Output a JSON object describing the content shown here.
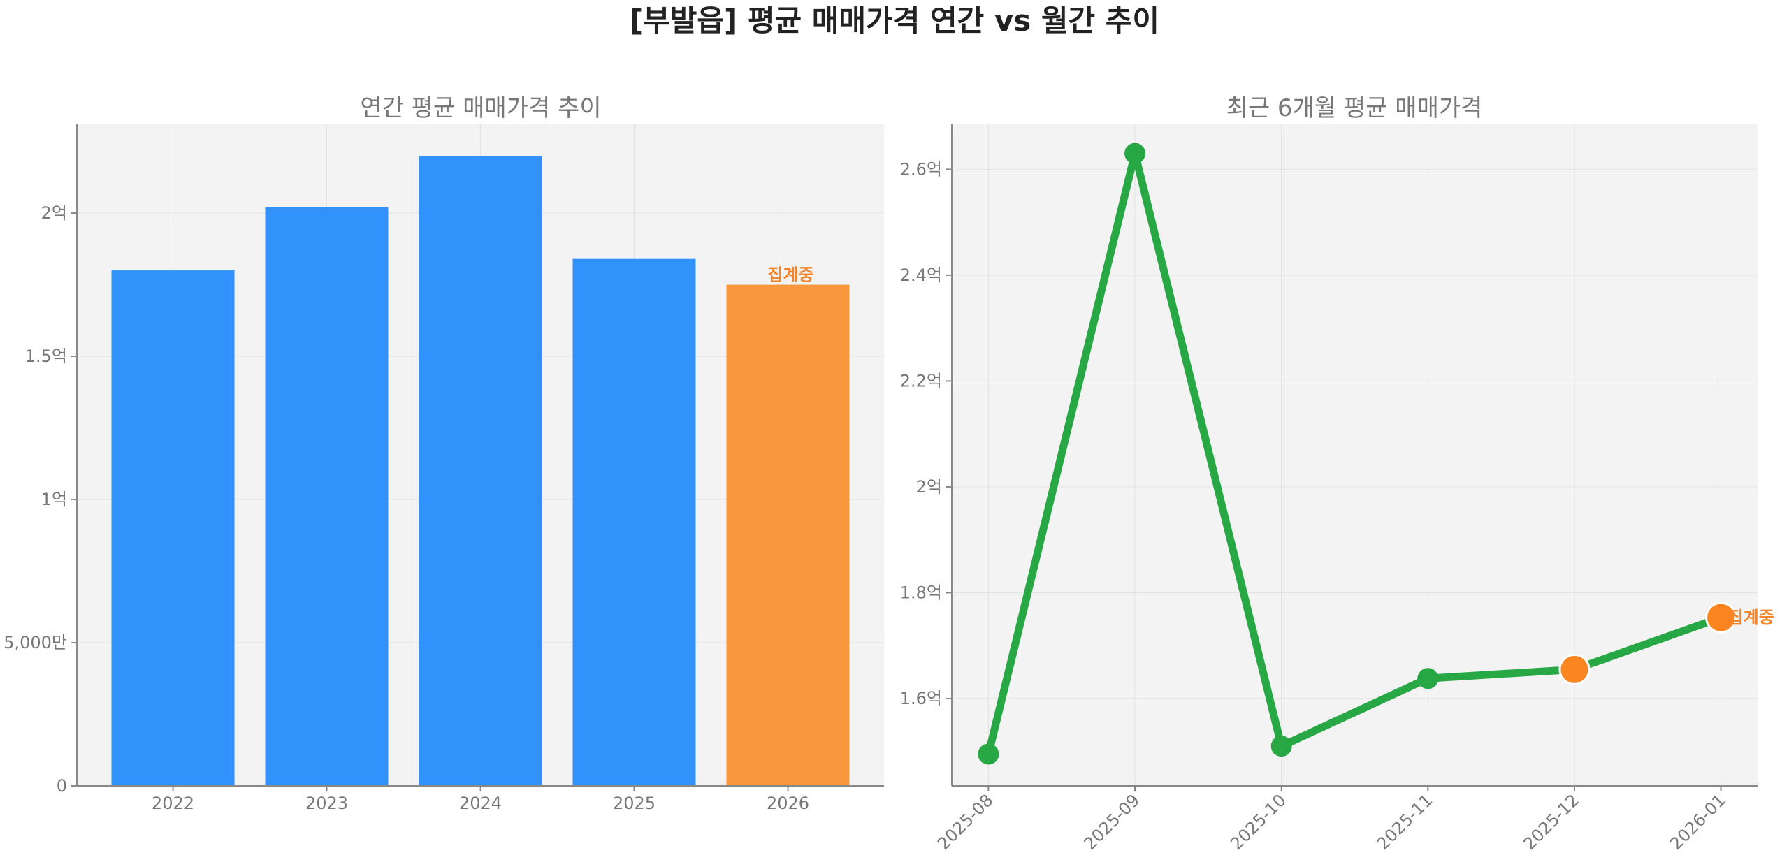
{
  "title": "[부발읍] 평균 매매가격 연간 vs 월간 추이",
  "colors": {
    "bar": "#3092FA",
    "bar_pending": "#F9973F",
    "line": "#27A844",
    "pending_marker": "#FB8520",
    "annotation": "#F5852A"
  },
  "chart_data": [
    {
      "type": "bar",
      "title": "연간 평균 매매가격 추이",
      "categories": [
        "2022",
        "2023",
        "2024",
        "2025",
        "2026"
      ],
      "values": [
        180000000,
        202000000,
        220000000,
        184000000,
        175000000
      ],
      "pending_index": 4,
      "annotation": "집계중",
      "ylim": [
        0,
        231000000
      ],
      "yticks": [
        {
          "value": 0,
          "label": "0"
        },
        {
          "value": 50000000,
          "label": "5,000만"
        },
        {
          "value": 100000000,
          "label": "1억"
        },
        {
          "value": 150000000,
          "label": "1.5억"
        },
        {
          "value": 200000000,
          "label": "2억"
        }
      ],
      "grid": true
    },
    {
      "type": "line",
      "title": "최근 6개월 평균 매매가격",
      "x": [
        "2025-08",
        "2025-09",
        "2025-10",
        "2025-11",
        "2025-12",
        "2026-01"
      ],
      "values": [
        149500000,
        263000000,
        151000000,
        163800000,
        165500000,
        175300000
      ],
      "pending_indices": [
        4,
        5
      ],
      "annotation": "집계중",
      "ylim": [
        143500000,
        268500000
      ],
      "yticks": [
        {
          "value": 160000000,
          "label": "1.6억"
        },
        {
          "value": 180000000,
          "label": "1.8억"
        },
        {
          "value": 200000000,
          "label": "2억"
        },
        {
          "value": 220000000,
          "label": "2.2억"
        },
        {
          "value": 240000000,
          "label": "2.4억"
        },
        {
          "value": 260000000,
          "label": "2.6억"
        }
      ],
      "grid": true
    }
  ]
}
